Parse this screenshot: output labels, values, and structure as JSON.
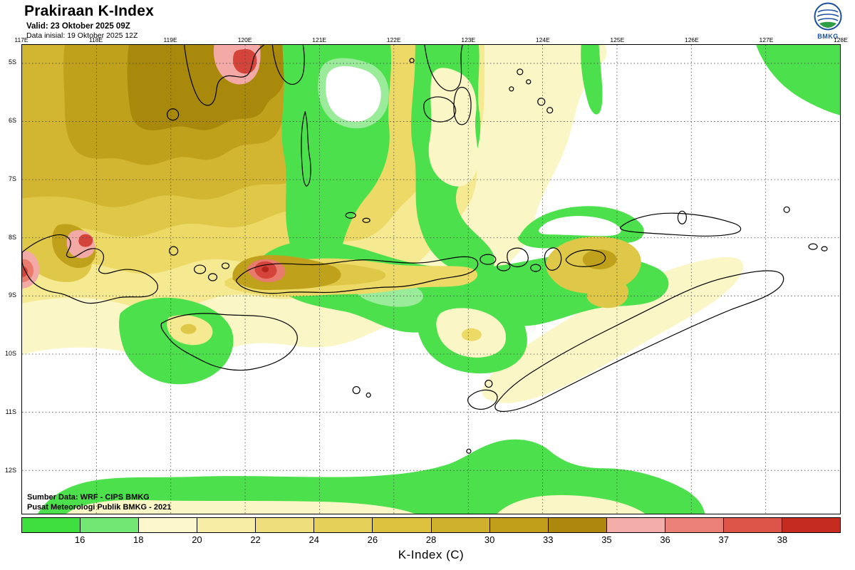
{
  "header": {
    "title": "Prakiraan K-Index",
    "valid_line": "Valid: 23 Oktober 2025 09Z",
    "init_line": "Data inisial: 19 Oktober 2025 12Z",
    "logo_text": "BMKG"
  },
  "map": {
    "lon_labels": [
      "117E",
      "118E",
      "119E",
      "120E",
      "121E",
      "122E",
      "123E",
      "124E",
      "125E",
      "126E",
      "127E",
      "128E"
    ],
    "lat_labels": [
      "5S",
      "6S",
      "7S",
      "8S",
      "9S",
      "10S",
      "11S",
      "12S"
    ],
    "credit_line1": "Sumber Data: WRF - CIPS BMKG",
    "credit_line2": "Pusat Meteorologi Publik BMKG - 2021"
  },
  "colorbar": {
    "title": "K-Index (C)",
    "tick_labels": [
      "16",
      "18",
      "20",
      "22",
      "24",
      "26",
      "28",
      "30",
      "33",
      "35",
      "36",
      "37",
      "38"
    ],
    "segment_colors": [
      "#40df40",
      "#73e773",
      "#fcf8cc",
      "#f7eda4",
      "#efdf7c",
      "#e5d059",
      "#dcc23f",
      "#d0b12d",
      "#c29f1b",
      "#ae880c",
      "#f4aeaa",
      "#ea8076",
      "#dc5347",
      "#c52c1f"
    ]
  },
  "map_colors": {
    "py": "#fbf6c6",
    "ly": "#f5e992",
    "my": "#ecd966",
    "gd": "#dfc848",
    "dg": "#d2b530",
    "ol": "#c0a11c",
    "do": "#a8890b",
    "gr": "#4ce14c",
    "lg": "#9aec9a",
    "pk": "#f3aaa6",
    "sa": "#e87b6e",
    "rd": "#d5443a",
    "dr": "#b5241a"
  }
}
